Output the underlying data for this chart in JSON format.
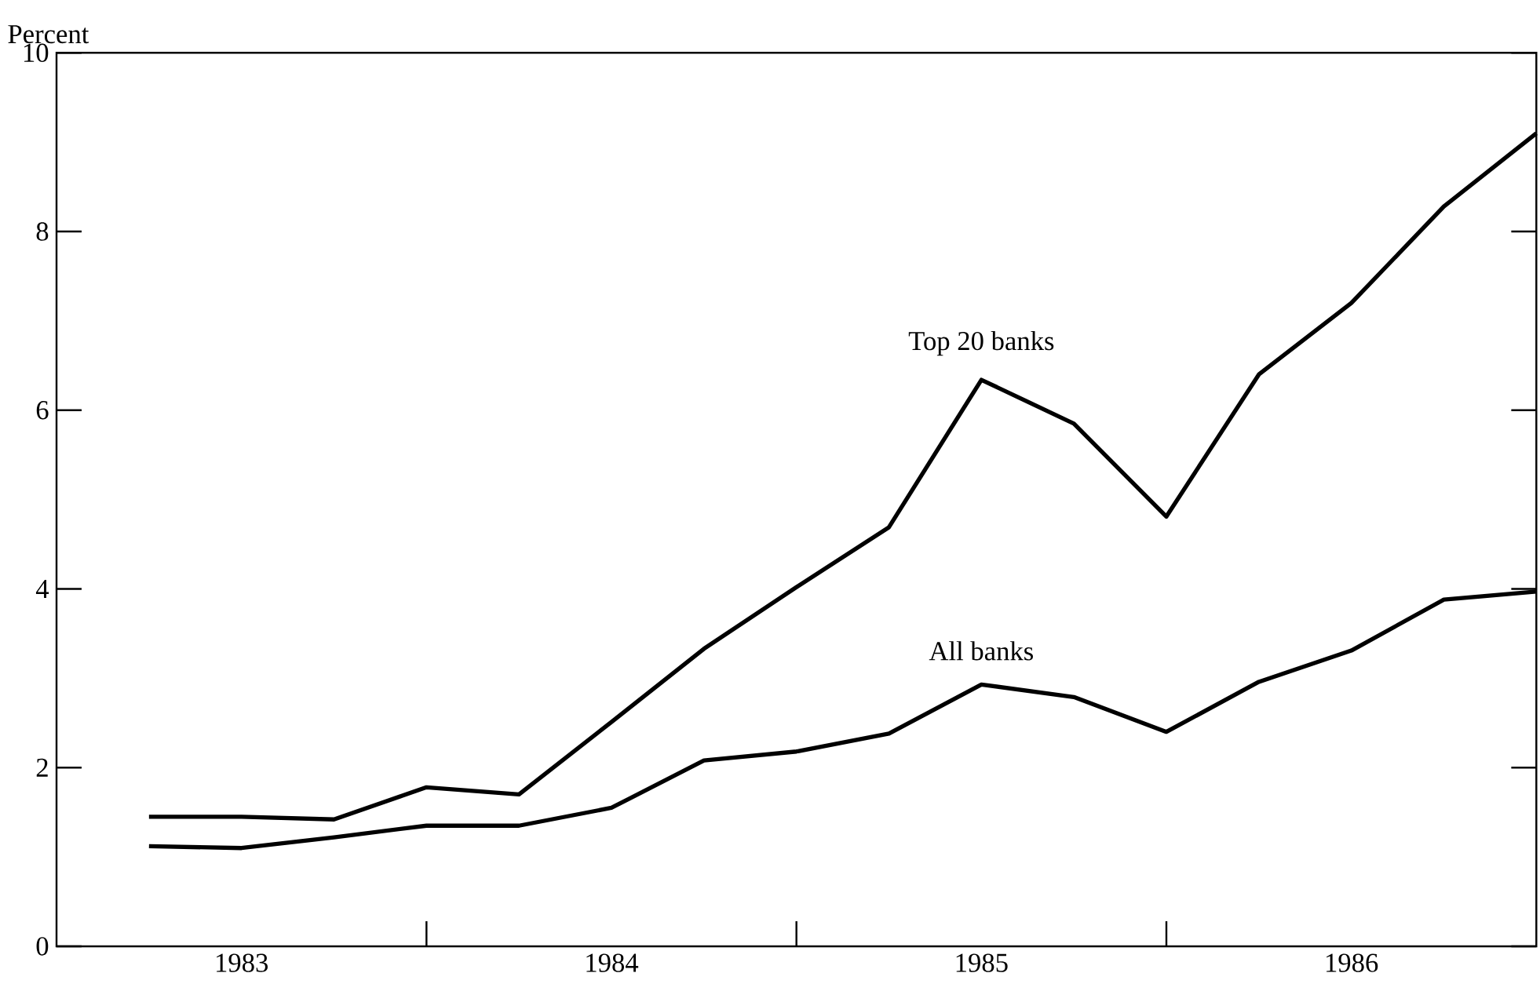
{
  "chart_data": {
    "type": "line",
    "ylabel": "Percent",
    "x": [
      1983.25,
      1983.5,
      1983.75,
      1984.0,
      1984.25,
      1984.5,
      1984.75,
      1985.0,
      1985.25,
      1985.5,
      1985.75,
      1986.0,
      1986.25,
      1986.5,
      1986.75,
      1987.0
    ],
    "series": [
      {
        "name": "Top 20 banks",
        "color": "#000000",
        "values": [
          1.45,
          1.45,
          1.42,
          1.78,
          1.7,
          2.51,
          3.33,
          4.02,
          4.69,
          6.34,
          5.85,
          4.81,
          6.4,
          7.2,
          8.28,
          9.1
        ]
      },
      {
        "name": "All banks",
        "color": "#000000",
        "values": [
          1.12,
          1.1,
          1.22,
          1.35,
          1.35,
          1.55,
          2.08,
          2.18,
          2.38,
          2.93,
          2.79,
          2.4,
          2.96,
          3.31,
          3.88,
          3.97
        ]
      }
    ],
    "xlim": [
      1983,
      1987
    ],
    "xticks": [
      {
        "value": 1983.5,
        "label": "1983"
      },
      {
        "value": 1984,
        "label": null
      },
      {
        "value": 1984.5,
        "label": "1984"
      },
      {
        "value": 1985,
        "label": null
      },
      {
        "value": 1985.5,
        "label": "1985"
      },
      {
        "value": 1986,
        "label": null
      },
      {
        "value": 1986.5,
        "label": "1986"
      }
    ],
    "ylim": [
      0,
      10
    ],
    "yticks": [
      0,
      2,
      4,
      6,
      8,
      10
    ],
    "grid": false,
    "marker": "none",
    "line_style": "solid"
  }
}
